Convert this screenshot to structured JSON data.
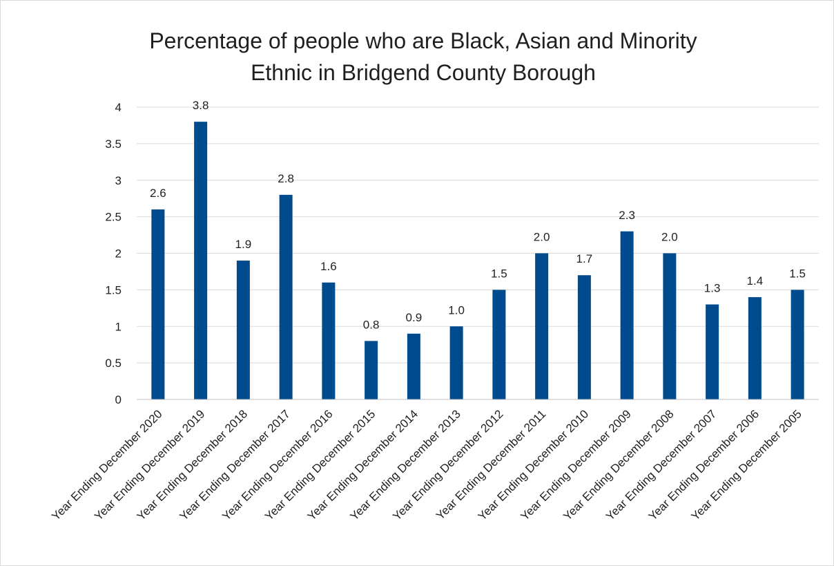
{
  "chart_data": {
    "type": "bar",
    "title_lines": [
      "Percentage of people who are Black, Asian and Minority",
      "Ethnic in Bridgend County Borough"
    ],
    "categories": [
      "Year Ending December 2020",
      "Year Ending December 2019",
      "Year Ending December 2018",
      "Year Ending December 2017",
      "Year Ending December 2016",
      "Year Ending December 2015",
      "Year Ending December 2014",
      "Year Ending December 2013",
      "Year Ending December 2012",
      "Year Ending December 2011",
      "Year Ending December 2010",
      "Year Ending December 2009",
      "Year Ending December 2008",
      "Year Ending December 2007",
      "Year Ending December 2006",
      "Year Ending December 2005"
    ],
    "values": [
      2.6,
      3.8,
      1.9,
      2.8,
      1.6,
      0.8,
      0.9,
      1.0,
      1.5,
      2.0,
      1.7,
      2.3,
      2.0,
      1.3,
      1.4,
      1.5
    ],
    "data_labels": [
      "2.6",
      "3.8",
      "1.9",
      "2.8",
      "1.6",
      "0.8",
      "0.9",
      "1.0",
      "1.5",
      "2.0",
      "1.7",
      "2.3",
      "2.0",
      "1.3",
      "1.4",
      "1.5"
    ],
    "y_ticks": [
      "0",
      "0.5",
      "1",
      "1.5",
      "2",
      "2.5",
      "3",
      "3.5",
      "4"
    ],
    "ylim": [
      0,
      4
    ],
    "xlabel": "",
    "ylabel": "",
    "grid": true,
    "legend": "none",
    "bar_color": "#004b8d"
  }
}
